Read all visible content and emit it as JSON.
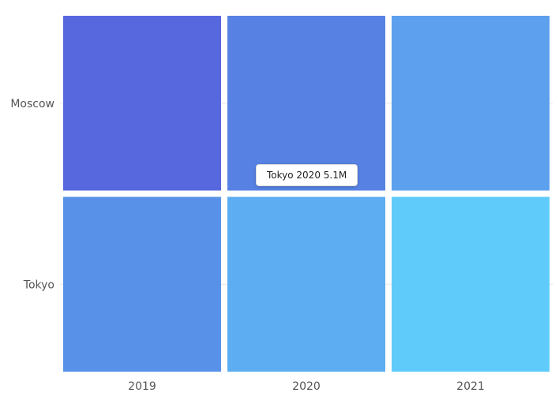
{
  "chart_data": {
    "type": "heatmap",
    "x_categories": [
      "2019",
      "2020",
      "2021"
    ],
    "y_categories": [
      "Moscow",
      "Tokyo"
    ],
    "cells": [
      {
        "row": "Moscow",
        "col": "2019",
        "color": "#5768de"
      },
      {
        "row": "Moscow",
        "col": "2020",
        "color": "#5782e3"
      },
      {
        "row": "Moscow",
        "col": "2021",
        "color": "#5da1ee"
      },
      {
        "row": "Tokyo",
        "col": "2019",
        "color": "#5892e8"
      },
      {
        "row": "Tokyo",
        "col": "2020",
        "color": "#5cadf1"
      },
      {
        "row": "Tokyo",
        "col": "2021",
        "color": "#5fcbfa"
      }
    ],
    "grid": true,
    "legend": "none"
  },
  "tooltip": {
    "text": "Tokyo 2020 5.1M"
  }
}
